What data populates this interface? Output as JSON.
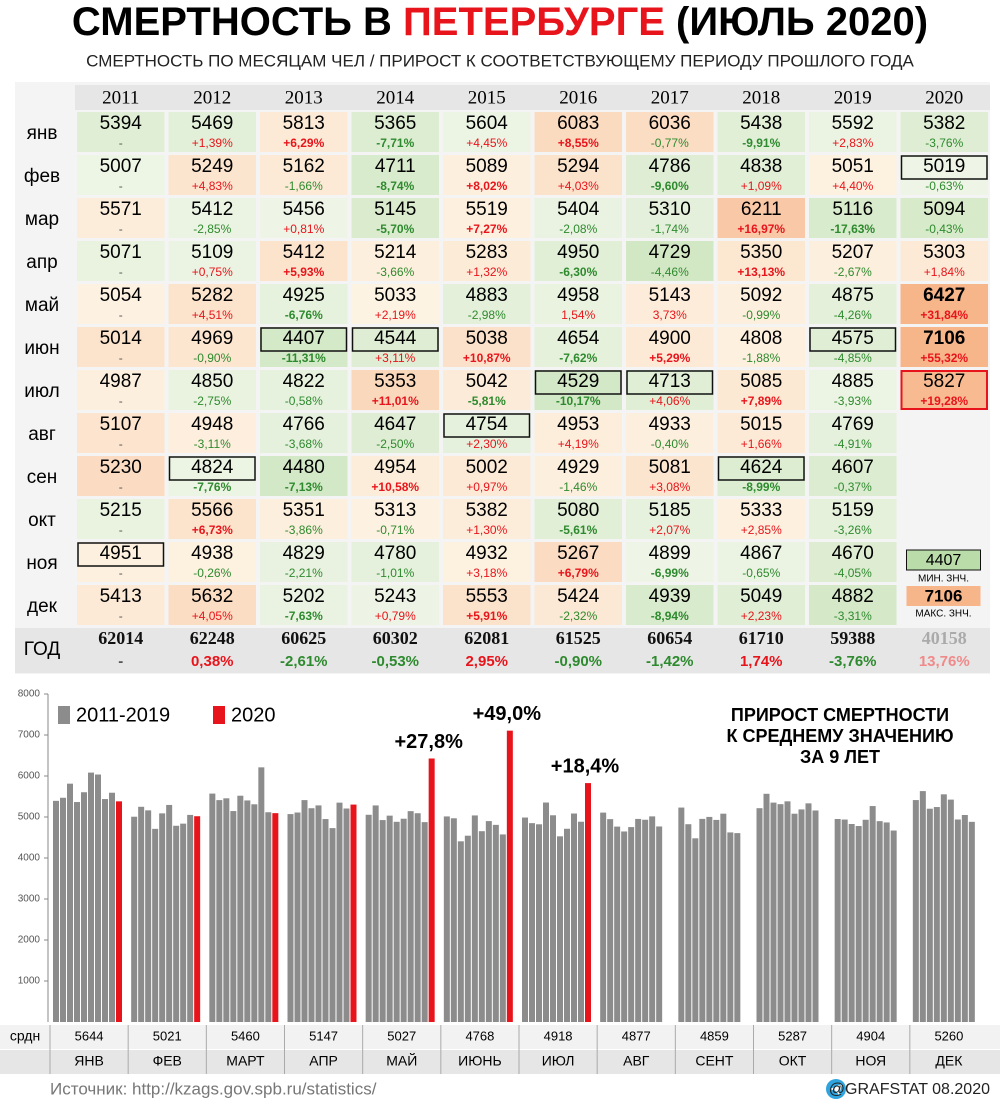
{
  "title": {
    "prefix": "СМЕРТНОСТЬ В ",
    "highlight": "ПЕТЕРБУРГЕ",
    "suffix": " (ИЮЛЬ 2020)"
  },
  "subtitle": "СМЕРТНОСТЬ ПО МЕСЯЦАМ ЧЕЛ / ПРИРОСТ К СООТВЕТСТВУЮЩЕМУ ПЕРИОДУ ПРОШЛОГО ГОДА",
  "table": {
    "years": [
      "2011",
      "2012",
      "2013",
      "2014",
      "2015",
      "2016",
      "2017",
      "2018",
      "2019",
      "2020"
    ],
    "rows": [
      {
        "month": "янв",
        "values": [
          5394,
          5469,
          5813,
          5365,
          5604,
          6083,
          6036,
          5438,
          5592,
          5382
        ],
        "changes": [
          "-",
          "+1,39%",
          "+6,29%",
          "-7,71%",
          "+4,45%",
          "+8,55%",
          "-0,77%",
          "-9,91%",
          "+2,83%",
          "-3,76%"
        ]
      },
      {
        "month": "фев",
        "values": [
          5007,
          5249,
          5162,
          4711,
          5089,
          5294,
          4786,
          4838,
          5051,
          5019
        ],
        "changes": [
          "-",
          "+4,83%",
          "-1,66%",
          "-8,74%",
          "+8,02%",
          "+4,03%",
          "-9,60%",
          "+1,09%",
          "+4,40%",
          "-0,63%"
        ]
      },
      {
        "month": "мар",
        "values": [
          5571,
          5412,
          5456,
          5145,
          5519,
          5404,
          5310,
          6211,
          5116,
          5094
        ],
        "changes": [
          "-",
          "-2,85%",
          "+0,81%",
          "-5,70%",
          "+7,27%",
          "-2,08%",
          "-1,74%",
          "+16,97%",
          "-17,63%",
          "-0,43%"
        ]
      },
      {
        "month": "апр",
        "values": [
          5071,
          5109,
          5412,
          5214,
          5283,
          4950,
          4729,
          5350,
          5207,
          5303
        ],
        "changes": [
          "-",
          "+0,75%",
          "+5,93%",
          "-3,66%",
          "+1,32%",
          "-6,30%",
          "-4,46%",
          "+13,13%",
          "-2,67%",
          "+1,84%"
        ]
      },
      {
        "month": "май",
        "values": [
          5054,
          5282,
          4925,
          5033,
          4883,
          4958,
          5143,
          5092,
          4875,
          6427
        ],
        "changes": [
          "-",
          "+4,51%",
          "-6,76%",
          "+2,19%",
          "-2,98%",
          "1,54%",
          "3,73%",
          "-0,99%",
          "-4,26%",
          "+31,84%"
        ]
      },
      {
        "month": "июн",
        "values": [
          5014,
          4969,
          4407,
          4544,
          5038,
          4654,
          4900,
          4808,
          4575,
          7106
        ],
        "changes": [
          "-",
          "-0,90%",
          "-11,31%",
          "+3,11%",
          "+10,87%",
          "-7,62%",
          "+5,29%",
          "-1,88%",
          "-4,85%",
          "+55,32%"
        ]
      },
      {
        "month": "июл",
        "values": [
          4987,
          4850,
          4822,
          5353,
          5042,
          4529,
          4713,
          5085,
          4885,
          5827
        ],
        "changes": [
          "-",
          "-2,75%",
          "-0,58%",
          "+11,01%",
          "-5,81%",
          "-10,17%",
          "+4,06%",
          "+7,89%",
          "-3,93%",
          "+19,28%"
        ]
      },
      {
        "month": "авг",
        "values": [
          5107,
          4948,
          4766,
          4647,
          4754,
          4953,
          4933,
          5015,
          4769,
          null
        ],
        "changes": [
          "-",
          "-3,11%",
          "-3,68%",
          "-2,50%",
          "+2,30%",
          "+4,19%",
          "-0,40%",
          "+1,66%",
          "-4,91%",
          null
        ]
      },
      {
        "month": "сен",
        "values": [
          5230,
          4824,
          4480,
          4954,
          5002,
          4929,
          5081,
          4624,
          4607,
          null
        ],
        "changes": [
          "-",
          "-7,76%",
          "-7,13%",
          "+10,58%",
          "+0,97%",
          "-1,46%",
          "+3,08%",
          "-8,99%",
          "-0,37%",
          null
        ]
      },
      {
        "month": "окт",
        "values": [
          5215,
          5566,
          5351,
          5313,
          5382,
          5080,
          5185,
          5333,
          5159,
          null
        ],
        "changes": [
          "-",
          "+6,73%",
          "-3,86%",
          "-0,71%",
          "+1,30%",
          "-5,61%",
          "+2,07%",
          "+2,85%",
          "-3,26%",
          null
        ]
      },
      {
        "month": "ноя",
        "values": [
          4951,
          4938,
          4829,
          4780,
          4932,
          5267,
          4899,
          4867,
          4670,
          null
        ],
        "changes": [
          "-",
          "-0,26%",
          "-2,21%",
          "-1,01%",
          "+3,18%",
          "+6,79%",
          "-6,99%",
          "-0,65%",
          "-4,05%",
          null
        ]
      },
      {
        "month": "дек",
        "values": [
          5413,
          5632,
          5202,
          5243,
          5553,
          5424,
          4939,
          5049,
          4882,
          null
        ],
        "changes": [
          "-",
          "+4,05%",
          "-7,63%",
          "+0,79%",
          "+5,91%",
          "-2,32%",
          "-8,94%",
          "+2,23%",
          "-3,31%",
          null
        ]
      }
    ],
    "total": {
      "label": "ГОД",
      "values": [
        62014,
        62248,
        60625,
        60302,
        62081,
        61525,
        60654,
        61710,
        59388,
        40158
      ],
      "changes": [
        "-",
        "0,38%",
        "-2,61%",
        "-0,53%",
        "2,95%",
        "-0,90%",
        "-1,42%",
        "1,74%",
        "-3,76%",
        "13,76%"
      ]
    },
    "legend": {
      "min": {
        "value": 4407,
        "label": "МИН. ЗНЧ."
      },
      "max": {
        "value": 7106,
        "label": "МАКС. ЗНЧ."
      }
    }
  },
  "chart_data": {
    "type": "bar",
    "title": [
      "ПРИРОСТ СМЕРТНОСТИ",
      "К СРЕДНЕМУ ЗНАЧЕНИЮ",
      "ЗА 9 ЛЕТ"
    ],
    "series": [
      {
        "name": "2011-2019",
        "color": "#8c8c8c"
      },
      {
        "name": "2020",
        "color": "#e8141b"
      }
    ],
    "ylim": [
      0,
      8000
    ],
    "yticks": [
      1000,
      2000,
      3000,
      4000,
      5000,
      6000,
      7000,
      8000
    ],
    "annotations": [
      "+27,8%",
      "+49,0%",
      "+18,4%"
    ],
    "average_label": "срдн",
    "averages": [
      5644,
      5021,
      5460,
      5147,
      5027,
      4768,
      4918,
      4877,
      4859,
      5287,
      4904,
      5260
    ],
    "categories": [
      "ЯНВ",
      "ФЕВ",
      "МАРТ",
      "АПР",
      "МАЙ",
      "ИЮНЬ",
      "ИЮЛ",
      "АВГ",
      "СЕНТ",
      "ОКТ",
      "НОЯ",
      "ДЕК"
    ]
  },
  "footer": {
    "source": "Источник: http://kzags.gov.spb.ru/statistics/",
    "brand": "@GRAFSTAT 08.2020"
  }
}
